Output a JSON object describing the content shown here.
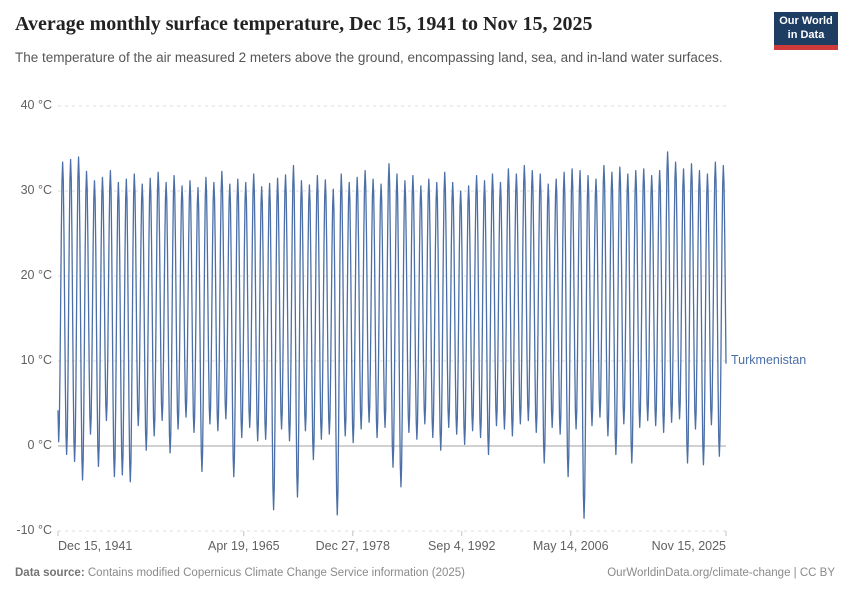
{
  "header": {
    "title": "Average monthly surface temperature, Dec 15, 1941 to Nov 15, 2025",
    "subtitle": "The temperature of the air measured 2 meters above the ground, encompassing land, sea, and in-land water surfaces.",
    "logo": {
      "line1": "Our World",
      "line2": "in Data",
      "bg_color": "#1d3d63",
      "accent_color": "#cf3a3a"
    }
  },
  "chart_data": {
    "type": "line",
    "title": "Average monthly surface temperature, Dec 15, 1941 to Nov 15, 2025",
    "series": [
      {
        "name": "Turkmenistan",
        "color": "#4b6fa6"
      }
    ],
    "x_axis": {
      "start_year": 1941.953,
      "end_year": 2025.871,
      "tick_labels": [
        "Dec 15, 1941",
        "Apr 19, 1965",
        "Dec 27, 1978",
        "Sep 4, 1992",
        "May 14, 2006",
        "Nov 15, 2025"
      ],
      "tick_years": [
        1941.953,
        1965.296,
        1978.986,
        1992.677,
        2006.364,
        2025.871
      ]
    },
    "y_axis": {
      "ticks": [
        -10,
        0,
        10,
        20,
        30,
        40
      ],
      "unit": "°C",
      "ylim": [
        -10,
        40
      ]
    },
    "gridlines": {
      "style": "dashed",
      "color": "#dcdcdc",
      "zero_line_color": "#a3a3a3",
      "tick_color": "#c2c2c2"
    },
    "seasonal_extremes": {
      "first_year": 1942,
      "start_value_dec_1941": 4.2,
      "assumed_next_trough_jan_2026": 2.0,
      "summer_peaks": [
        33.4,
        33.7,
        34.0,
        32.3,
        31.2,
        31.6,
        32.4,
        31.0,
        31.4,
        32.0,
        30.8,
        31.5,
        32.2,
        31.0,
        31.8,
        30.6,
        31.2,
        30.4,
        31.6,
        31.0,
        32.3,
        30.8,
        31.4,
        31.0,
        32.0,
        30.5,
        30.9,
        31.5,
        31.9,
        33.0,
        31.2,
        30.7,
        31.8,
        31.3,
        30.2,
        32.0,
        31.0,
        31.6,
        32.4,
        31.4,
        30.8,
        33.2,
        32.0,
        31.2,
        31.8,
        30.6,
        31.4,
        31.0,
        32.2,
        31.0,
        30.0,
        30.6,
        31.8,
        31.2,
        32.0,
        31.0,
        32.6,
        32.0,
        33.0,
        32.4,
        32.0,
        30.8,
        31.4,
        32.2,
        32.6,
        32.4,
        31.8,
        31.4,
        33.0,
        32.2,
        32.8,
        32.0,
        32.4,
        32.6,
        31.8,
        32.4,
        34.6,
        33.4,
        32.6,
        33.2,
        32.4,
        32.0,
        33.4,
        33.0
      ],
      "winter_troughs": [
        0.5,
        -1.0,
        -1.8,
        -4.0,
        1.4,
        -2.4,
        3.0,
        -3.6,
        -3.4,
        -4.2,
        2.4,
        -0.5,
        1.2,
        3.0,
        -0.8,
        2.0,
        3.4,
        1.6,
        -3.0,
        2.6,
        1.8,
        3.2,
        -3.6,
        1.0,
        2.2,
        0.6,
        0.8,
        -7.5,
        2.0,
        0.6,
        -6.0,
        1.8,
        -1.6,
        0.8,
        1.4,
        -8.1,
        1.2,
        0.4,
        2.0,
        2.8,
        1.0,
        2.2,
        -2.5,
        -4.8,
        1.6,
        0.8,
        2.6,
        1.0,
        -0.5,
        2.2,
        1.4,
        0.2,
        1.8,
        1.0,
        -1.0,
        2.4,
        2.0,
        1.2,
        2.6,
        3.0,
        1.6,
        -2.0,
        2.2,
        1.4,
        -3.6,
        2.0,
        -8.5,
        2.4,
        3.4,
        1.2,
        -1.0,
        2.6,
        -2.0,
        2.2,
        3.0,
        2.4,
        1.6,
        2.8,
        3.2,
        -2.0,
        2.0,
        -2.2,
        2.5,
        -1.2
      ]
    }
  },
  "footer": {
    "source_label": "Data source:",
    "source_text": " Contains modified Copernicus Climate Change Service information (2025)",
    "link_text": "OurWorldinData.org/climate-change | CC BY"
  }
}
